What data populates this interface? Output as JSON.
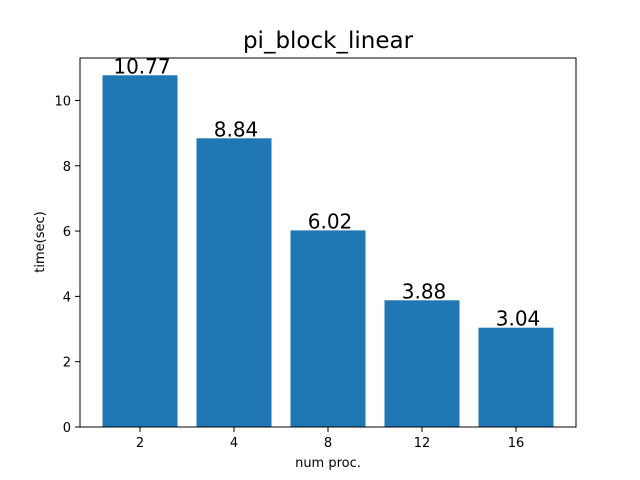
{
  "chart_data": {
    "type": "bar",
    "title": "pi_block_linear",
    "xlabel": "num proc.",
    "ylabel": "time(sec)",
    "categories": [
      "2",
      "4",
      "8",
      "12",
      "16"
    ],
    "values": [
      10.77,
      8.84,
      6.02,
      3.88,
      3.04
    ],
    "data_labels": [
      "10.77",
      "8.84",
      "6.02",
      "3.88",
      "3.04"
    ],
    "ylim": [
      0,
      11.3
    ],
    "yticks": [
      0,
      2,
      4,
      6,
      8,
      10
    ],
    "ytick_labels": [
      "0",
      "2",
      "4",
      "6",
      "8",
      "10"
    ],
    "bar_color": "#1f77b4",
    "grid": false,
    "legend": "none"
  }
}
